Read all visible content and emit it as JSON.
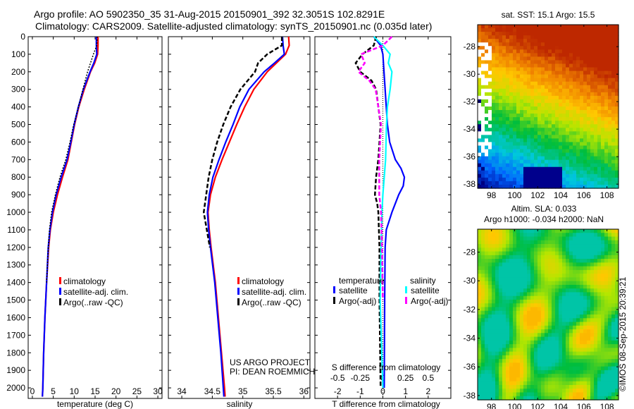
{
  "title": {
    "line1": "Argo profile: AO 5902350_35 31-Aug-2015 20150901_392 32.3051S 102.8291E",
    "line2": "Climatology: CARS2009. Satellite-adjusted climatology: synTS_20150901.nc (0.035d later)"
  },
  "colors": {
    "climatology": "#ff0000",
    "satellite": "#0000ff",
    "argo": "#000000",
    "sal_satellite": "#00ffff",
    "sal_argo": "#ff00ff"
  },
  "chart_data": [
    {
      "type": "line",
      "id": "temperature",
      "xlabel": "temperature (deg C)",
      "xlim": [
        -1,
        31
      ],
      "ylim": [
        2060,
        0
      ],
      "xticks": [
        0,
        5,
        10,
        15,
        20,
        25,
        30
      ],
      "yticks": [
        0,
        100,
        200,
        300,
        400,
        500,
        600,
        700,
        800,
        900,
        1000,
        1100,
        1200,
        1300,
        1400,
        1500,
        1600,
        1700,
        1800,
        1900,
        2000
      ],
      "legend": [
        "climatology",
        "satellite-adj. clim.",
        "Argo(..raw -QC)"
      ],
      "series": [
        {
          "name": "climatology",
          "depth": [
            0,
            50,
            100,
            150,
            200,
            300,
            400,
            500,
            600,
            700,
            800,
            900,
            1000,
            1100,
            1200,
            1400,
            1600,
            1800,
            2000,
            2050
          ],
          "values": [
            15.7,
            15.7,
            15.6,
            14.9,
            13.9,
            12.4,
            11.1,
            10.1,
            9.3,
            8.5,
            7.2,
            6.0,
            5.0,
            4.3,
            3.9,
            3.4,
            3.0,
            2.7,
            2.5,
            2.4
          ]
        },
        {
          "name": "satellite-adj. clim.",
          "depth": [
            0,
            50,
            100,
            150,
            200,
            300,
            400,
            500,
            600,
            700,
            800,
            900,
            1000,
            1100,
            1200,
            1400,
            1600,
            1800,
            2000,
            2050
          ],
          "values": [
            15.3,
            15.3,
            15.4,
            14.7,
            13.8,
            12.2,
            11.0,
            10.0,
            9.2,
            8.3,
            6.9,
            5.7,
            4.8,
            4.2,
            3.8,
            3.4,
            3.0,
            2.7,
            2.5,
            2.4
          ]
        },
        {
          "name": "Argo(..raw -QC)",
          "depth": [
            0,
            50,
            100,
            150,
            200,
            300,
            400,
            500,
            600,
            700,
            800,
            900,
            1000,
            1100,
            1200,
            1400
          ],
          "values": [
            15.5,
            15.4,
            14.6,
            13.9,
            13.2,
            12.1,
            11.0,
            9.9,
            9.0,
            8.0,
            6.6,
            5.5,
            4.6,
            4.1,
            3.8,
            3.4
          ]
        }
      ]
    },
    {
      "type": "line",
      "id": "salinity",
      "xlabel": "salinity",
      "xlim": [
        33.78,
        36.1
      ],
      "ylim": [
        2060,
        0
      ],
      "xticks": [
        34,
        34.5,
        35,
        35.5,
        36
      ],
      "legend": [
        "climatology",
        "satellite-adj. clim.",
        "Argo(..raw -QC)"
      ],
      "annotations": [
        "US ARGO PROJECT",
        "PI: DEAN ROEMMICH"
      ],
      "series": [
        {
          "name": "climatology",
          "depth": [
            0,
            50,
            100,
            150,
            200,
            300,
            400,
            500,
            600,
            700,
            800,
            900,
            1000,
            1100,
            1200,
            1400,
            1600,
            1800,
            2000,
            2050
          ],
          "values": [
            35.75,
            35.76,
            35.7,
            35.55,
            35.4,
            35.18,
            35.03,
            34.9,
            34.78,
            34.66,
            34.55,
            34.47,
            34.43,
            34.45,
            34.48,
            34.55,
            34.6,
            34.65,
            34.7,
            34.71
          ]
        },
        {
          "name": "satellite-adj. clim.",
          "depth": [
            0,
            50,
            100,
            150,
            200,
            300,
            400,
            500,
            600,
            700,
            800,
            900,
            1000,
            1100,
            1200,
            1400,
            1600,
            1800,
            2000,
            2050
          ],
          "values": [
            35.65,
            35.66,
            35.68,
            35.52,
            35.35,
            35.1,
            34.95,
            34.84,
            34.72,
            34.61,
            34.51,
            34.45,
            34.42,
            34.44,
            34.47,
            34.54,
            34.59,
            34.64,
            34.68,
            34.69
          ]
        },
        {
          "name": "Argo(..raw -QC)",
          "depth": [
            0,
            50,
            100,
            150,
            200,
            300,
            400,
            500,
            600,
            700,
            800,
            900,
            1000,
            1100,
            1200
          ],
          "values": [
            35.64,
            35.64,
            35.4,
            35.25,
            35.2,
            34.96,
            34.8,
            34.68,
            34.58,
            34.5,
            34.44,
            34.4,
            34.36,
            34.41,
            34.46
          ]
        }
      ]
    },
    {
      "type": "line",
      "id": "difference",
      "xlabel": "T difference from climatology",
      "xlabel2": "S difference from climatology",
      "xlim": [
        -3,
        3
      ],
      "x2lim": [
        -0.75,
        0.75
      ],
      "xticks": [
        -2,
        -1,
        0,
        1,
        2
      ],
      "x2ticks": [
        "-0.5",
        "-0.25",
        "0",
        "0.25",
        "0.5"
      ],
      "legend_titles": [
        "temperature",
        "salinity"
      ],
      "legend": [
        "satellite",
        "Argo(-adj)",
        "satellite",
        "Argo(-adj)"
      ],
      "series": [
        {
          "name": "T satellite",
          "depth": [
            0,
            50,
            100,
            200,
            300,
            400,
            500,
            600,
            700,
            750,
            800,
            850,
            900,
            1000,
            1100,
            1200,
            1500,
            2000
          ],
          "values": [
            -0.4,
            -0.1,
            0,
            0.05,
            0.1,
            0.15,
            0.2,
            0.3,
            0.55,
            0.8,
            0.95,
            0.9,
            0.7,
            0.4,
            0.15,
            0.1,
            0.08,
            0.06
          ]
        },
        {
          "name": "T Argo(-adj)",
          "depth": [
            0,
            50,
            100,
            150,
            200,
            250,
            300,
            400,
            500,
            600,
            700,
            800,
            900,
            950,
            1000,
            1200,
            1500,
            2000
          ],
          "values": [
            -0.3,
            -0.4,
            -0.9,
            -1.2,
            -1.0,
            -0.5,
            -0.3,
            -0.2,
            -0.1,
            -0.15,
            -0.2,
            -0.3,
            -0.35,
            -0.25,
            -0.2,
            -0.15,
            -0.15,
            -0.1
          ]
        },
        {
          "name": "S satellite",
          "depth": [
            0,
            50,
            100,
            150,
            200,
            300,
            400,
            500,
            700,
            900,
            1000,
            1200,
            1500,
            2000
          ],
          "values": [
            -0.1,
            0.0,
            0.08,
            0.06,
            0.1,
            0.08,
            0.05,
            0.04,
            0.03,
            0.0,
            -0.01,
            -0.02,
            -0.03,
            0.0
          ]
        },
        {
          "name": "S Argo(-adj)",
          "depth": [
            0,
            50,
            100,
            150,
            200,
            250,
            300,
            400,
            500,
            700,
            900,
            1000,
            1200,
            1500
          ],
          "values": [
            0.1,
            0.0,
            -0.24,
            -0.2,
            -0.27,
            -0.15,
            -0.08,
            -0.05,
            -0.02,
            -0.04,
            -0.04,
            -0.02,
            -0.01,
            0.0
          ]
        }
      ]
    },
    {
      "type": "heatmap",
      "id": "sst-map",
      "title": "sat. SST: 15.1 Argo: 15.5",
      "xticks": [
        98,
        100,
        102,
        104,
        106,
        108
      ],
      "yticks": [
        -28,
        -30,
        -32,
        -34,
        -36,
        -38
      ],
      "xlim": [
        96.8,
        109
      ],
      "ylim": [
        -38.3,
        -26.4
      ]
    },
    {
      "type": "heatmap",
      "id": "sla-map",
      "title": "Altim. SLA: 0.033",
      "subtitle": "Argo h1000: -0.034 h2000: NaN",
      "xticks": [
        98,
        100,
        102,
        104,
        106,
        108
      ],
      "yticks": [
        -28,
        -30,
        -32,
        -34,
        -36,
        -38
      ],
      "xlim": [
        96.8,
        109
      ],
      "ylim": [
        -38.3,
        -26.4
      ]
    }
  ],
  "footer": {
    "stamp": "©IMOS 08-Sep-2015 20:39:21"
  }
}
